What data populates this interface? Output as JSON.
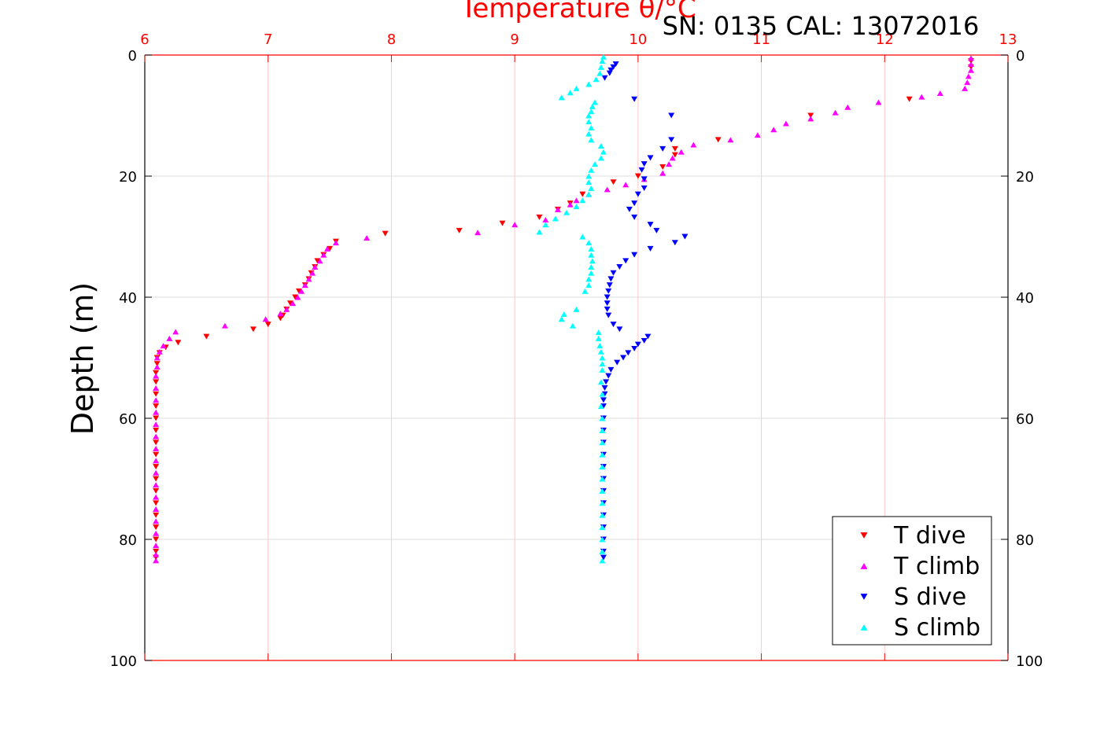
{
  "chart_data": {
    "type": "scatter",
    "title": "Temperature θ/°C",
    "subtitle": "SN: 0135  CAL: 13072016",
    "ylabel": "Depth (m)",
    "xlabel": "",
    "xlim": [
      6,
      13
    ],
    "ylim": [
      0,
      100
    ],
    "y_reversed": true,
    "x_ticks": [
      6,
      7,
      8,
      9,
      10,
      11,
      12,
      13
    ],
    "y_ticks": [
      0,
      20,
      40,
      60,
      80,
      100
    ],
    "grid": true,
    "legend_position": "bottom-right",
    "colors": {
      "axis_top": "#ff0000",
      "axis_other": "#000000",
      "grid_vertical": "#ffc8c8",
      "grid_horizontal": "#dddddd"
    },
    "series": [
      {
        "name": "T dive",
        "marker": "triangle-down",
        "color": "#ff0000",
        "points": [
          [
            12.7,
            1
          ],
          [
            12.7,
            2
          ],
          [
            12.2,
            7.3
          ],
          [
            11.4,
            10
          ],
          [
            10.65,
            14
          ],
          [
            10.3,
            15.5
          ],
          [
            10.3,
            16.5
          ],
          [
            10.2,
            18.5
          ],
          [
            10.0,
            20
          ],
          [
            9.8,
            21
          ],
          [
            9.55,
            23
          ],
          [
            9.45,
            24.5
          ],
          [
            9.35,
            25.5
          ],
          [
            9.2,
            26.8
          ],
          [
            8.9,
            27.8
          ],
          [
            8.55,
            29
          ],
          [
            7.95,
            29.5
          ],
          [
            7.55,
            30.8
          ],
          [
            7.5,
            32
          ],
          [
            7.45,
            33
          ],
          [
            7.4,
            34
          ],
          [
            7.38,
            35
          ],
          [
            7.35,
            36
          ],
          [
            7.33,
            37
          ],
          [
            7.3,
            38
          ],
          [
            7.25,
            39
          ],
          [
            7.22,
            40
          ],
          [
            7.18,
            41
          ],
          [
            7.15,
            42
          ],
          [
            7.12,
            43
          ],
          [
            7.1,
            43.5
          ],
          [
            7.0,
            44.5
          ],
          [
            6.88,
            45.3
          ],
          [
            6.5,
            46.5
          ],
          [
            6.27,
            47.5
          ],
          [
            6.17,
            48.3
          ],
          [
            6.12,
            49.2
          ],
          [
            6.1,
            50
          ],
          [
            6.1,
            51
          ],
          [
            6.09,
            52.5
          ],
          [
            6.09,
            54
          ],
          [
            6.09,
            56
          ],
          [
            6.09,
            58
          ],
          [
            6.09,
            60
          ],
          [
            6.09,
            62
          ],
          [
            6.09,
            64
          ],
          [
            6.09,
            66
          ],
          [
            6.09,
            68
          ],
          [
            6.09,
            70
          ],
          [
            6.09,
            72
          ],
          [
            6.09,
            74
          ],
          [
            6.09,
            76
          ],
          [
            6.09,
            78
          ],
          [
            6.09,
            80
          ],
          [
            6.09,
            82
          ],
          [
            6.09,
            83
          ]
        ]
      },
      {
        "name": "T climb",
        "marker": "triangle-up",
        "color": "#ff00ff",
        "points": [
          [
            12.7,
            0.5
          ],
          [
            12.7,
            1.5
          ],
          [
            12.7,
            2.5
          ],
          [
            12.68,
            3.5
          ],
          [
            12.67,
            4.5
          ],
          [
            12.65,
            5.5
          ],
          [
            12.45,
            6.3
          ],
          [
            12.3,
            6.9
          ],
          [
            11.95,
            7.8
          ],
          [
            11.7,
            8.6
          ],
          [
            11.6,
            9.5
          ],
          [
            11.4,
            10.5
          ],
          [
            11.2,
            11.3
          ],
          [
            11.1,
            12.3
          ],
          [
            10.97,
            13.2
          ],
          [
            10.75,
            14
          ],
          [
            10.45,
            14.8
          ],
          [
            10.35,
            16
          ],
          [
            10.28,
            17
          ],
          [
            10.25,
            18
          ],
          [
            10.2,
            19.5
          ],
          [
            10.05,
            20.5
          ],
          [
            9.9,
            21.4
          ],
          [
            9.75,
            22.2
          ],
          [
            9.6,
            23
          ],
          [
            9.5,
            24
          ],
          [
            9.45,
            24.7
          ],
          [
            9.35,
            25.5
          ],
          [
            9.25,
            27.2
          ],
          [
            9.0,
            28
          ],
          [
            8.7,
            29.3
          ],
          [
            7.8,
            30.2
          ],
          [
            7.55,
            31
          ],
          [
            7.48,
            32
          ],
          [
            7.45,
            33
          ],
          [
            7.42,
            34
          ],
          [
            7.38,
            35
          ],
          [
            7.36,
            36
          ],
          [
            7.33,
            37
          ],
          [
            7.3,
            38
          ],
          [
            7.27,
            39
          ],
          [
            7.24,
            40
          ],
          [
            7.2,
            41
          ],
          [
            7.15,
            42
          ],
          [
            7.1,
            42.7
          ],
          [
            6.98,
            43.6
          ],
          [
            6.65,
            44.7
          ],
          [
            6.25,
            45.7
          ],
          [
            6.2,
            46.8
          ],
          [
            6.15,
            48
          ],
          [
            6.12,
            49
          ],
          [
            6.1,
            50
          ],
          [
            6.1,
            51.5
          ],
          [
            6.09,
            53
          ],
          [
            6.09,
            55
          ],
          [
            6.09,
            57
          ],
          [
            6.09,
            59
          ],
          [
            6.09,
            61
          ],
          [
            6.09,
            63
          ],
          [
            6.09,
            65
          ],
          [
            6.09,
            67
          ],
          [
            6.09,
            69
          ],
          [
            6.09,
            71
          ],
          [
            6.09,
            73
          ],
          [
            6.09,
            75
          ],
          [
            6.09,
            77
          ],
          [
            6.09,
            79
          ],
          [
            6.09,
            81
          ],
          [
            6.09,
            82.5
          ],
          [
            6.09,
            83.5
          ]
        ]
      },
      {
        "name": "S dive",
        "marker": "triangle-down",
        "color": "#0000ff",
        "points": [
          [
            9.82,
            1.5
          ],
          [
            9.8,
            2
          ],
          [
            9.78,
            2.5
          ],
          [
            9.77,
            3
          ],
          [
            9.73,
            3.8
          ],
          [
            9.97,
            7.3
          ],
          [
            10.27,
            10
          ],
          [
            10.27,
            14
          ],
          [
            10.2,
            15.5
          ],
          [
            10.1,
            17
          ],
          [
            10.05,
            18
          ],
          [
            10.03,
            19
          ],
          [
            10.05,
            20.5
          ],
          [
            10.05,
            22
          ],
          [
            10.0,
            23
          ],
          [
            9.97,
            24.5
          ],
          [
            9.93,
            25.5
          ],
          [
            9.97,
            26.8
          ],
          [
            10.1,
            28
          ],
          [
            10.15,
            29
          ],
          [
            10.38,
            30
          ],
          [
            10.3,
            31
          ],
          [
            10.1,
            32
          ],
          [
            9.97,
            33
          ],
          [
            9.9,
            34
          ],
          [
            9.85,
            35
          ],
          [
            9.8,
            36
          ],
          [
            9.78,
            37
          ],
          [
            9.77,
            38
          ],
          [
            9.76,
            39
          ],
          [
            9.75,
            40
          ],
          [
            9.75,
            41
          ],
          [
            9.75,
            42
          ],
          [
            9.76,
            43
          ],
          [
            9.8,
            44.5
          ],
          [
            9.85,
            45.3
          ],
          [
            10.08,
            46.5
          ],
          [
            10.05,
            47.2
          ],
          [
            10.0,
            47.8
          ],
          [
            9.97,
            48.5
          ],
          [
            9.92,
            49.2
          ],
          [
            9.88,
            50
          ],
          [
            9.83,
            50.8
          ],
          [
            9.78,
            52
          ],
          [
            9.76,
            53
          ],
          [
            9.74,
            54
          ],
          [
            9.73,
            55
          ],
          [
            9.73,
            56
          ],
          [
            9.72,
            57
          ],
          [
            9.72,
            58
          ],
          [
            9.72,
            60
          ],
          [
            9.72,
            62
          ],
          [
            9.72,
            64
          ],
          [
            9.72,
            66
          ],
          [
            9.72,
            68
          ],
          [
            9.72,
            70
          ],
          [
            9.72,
            72
          ],
          [
            9.72,
            74
          ],
          [
            9.72,
            76
          ],
          [
            9.72,
            78
          ],
          [
            9.72,
            80
          ],
          [
            9.72,
            82
          ],
          [
            9.72,
            83
          ]
        ]
      },
      {
        "name": "S climb",
        "marker": "triangle-up",
        "color": "#00ffff",
        "points": [
          [
            9.72,
            0.3
          ],
          [
            9.71,
            1
          ],
          [
            9.7,
            2
          ],
          [
            9.69,
            3
          ],
          [
            9.66,
            4
          ],
          [
            9.6,
            4.8
          ],
          [
            9.5,
            5.5
          ],
          [
            9.45,
            6.2
          ],
          [
            9.38,
            7
          ],
          [
            9.65,
            7.8
          ],
          [
            9.63,
            8.5
          ],
          [
            9.62,
            9.3
          ],
          [
            9.6,
            10
          ],
          [
            9.6,
            11
          ],
          [
            9.62,
            12
          ],
          [
            9.6,
            13
          ],
          [
            9.62,
            14
          ],
          [
            9.7,
            15
          ],
          [
            9.72,
            16
          ],
          [
            9.7,
            17
          ],
          [
            9.65,
            18
          ],
          [
            9.62,
            19
          ],
          [
            9.6,
            20
          ],
          [
            9.6,
            21
          ],
          [
            9.62,
            22
          ],
          [
            9.6,
            23
          ],
          [
            9.55,
            24
          ],
          [
            9.5,
            25
          ],
          [
            9.42,
            26
          ],
          [
            9.33,
            27
          ],
          [
            9.25,
            28
          ],
          [
            9.2,
            29.2
          ],
          [
            9.55,
            30
          ],
          [
            9.6,
            31
          ],
          [
            9.62,
            32
          ],
          [
            9.62,
            33
          ],
          [
            9.63,
            34
          ],
          [
            9.62,
            35
          ],
          [
            9.62,
            36
          ],
          [
            9.6,
            37
          ],
          [
            9.6,
            38
          ],
          [
            9.57,
            39
          ],
          [
            9.5,
            42
          ],
          [
            9.4,
            42.8
          ],
          [
            9.38,
            43.6
          ],
          [
            9.47,
            44.7
          ],
          [
            9.68,
            45.8
          ],
          [
            9.68,
            46.8
          ],
          [
            9.69,
            48
          ],
          [
            9.7,
            49
          ],
          [
            9.71,
            50
          ],
          [
            9.71,
            51
          ],
          [
            9.71,
            52
          ],
          [
            9.7,
            54
          ],
          [
            9.71,
            56
          ],
          [
            9.7,
            58
          ],
          [
            9.71,
            60
          ],
          [
            9.71,
            62
          ],
          [
            9.71,
            64
          ],
          [
            9.71,
            66
          ],
          [
            9.71,
            68
          ],
          [
            9.71,
            70
          ],
          [
            9.71,
            72
          ],
          [
            9.71,
            74
          ],
          [
            9.71,
            76
          ],
          [
            9.71,
            78
          ],
          [
            9.71,
            80
          ],
          [
            9.71,
            82
          ],
          [
            9.71,
            83.5
          ]
        ]
      }
    ]
  }
}
